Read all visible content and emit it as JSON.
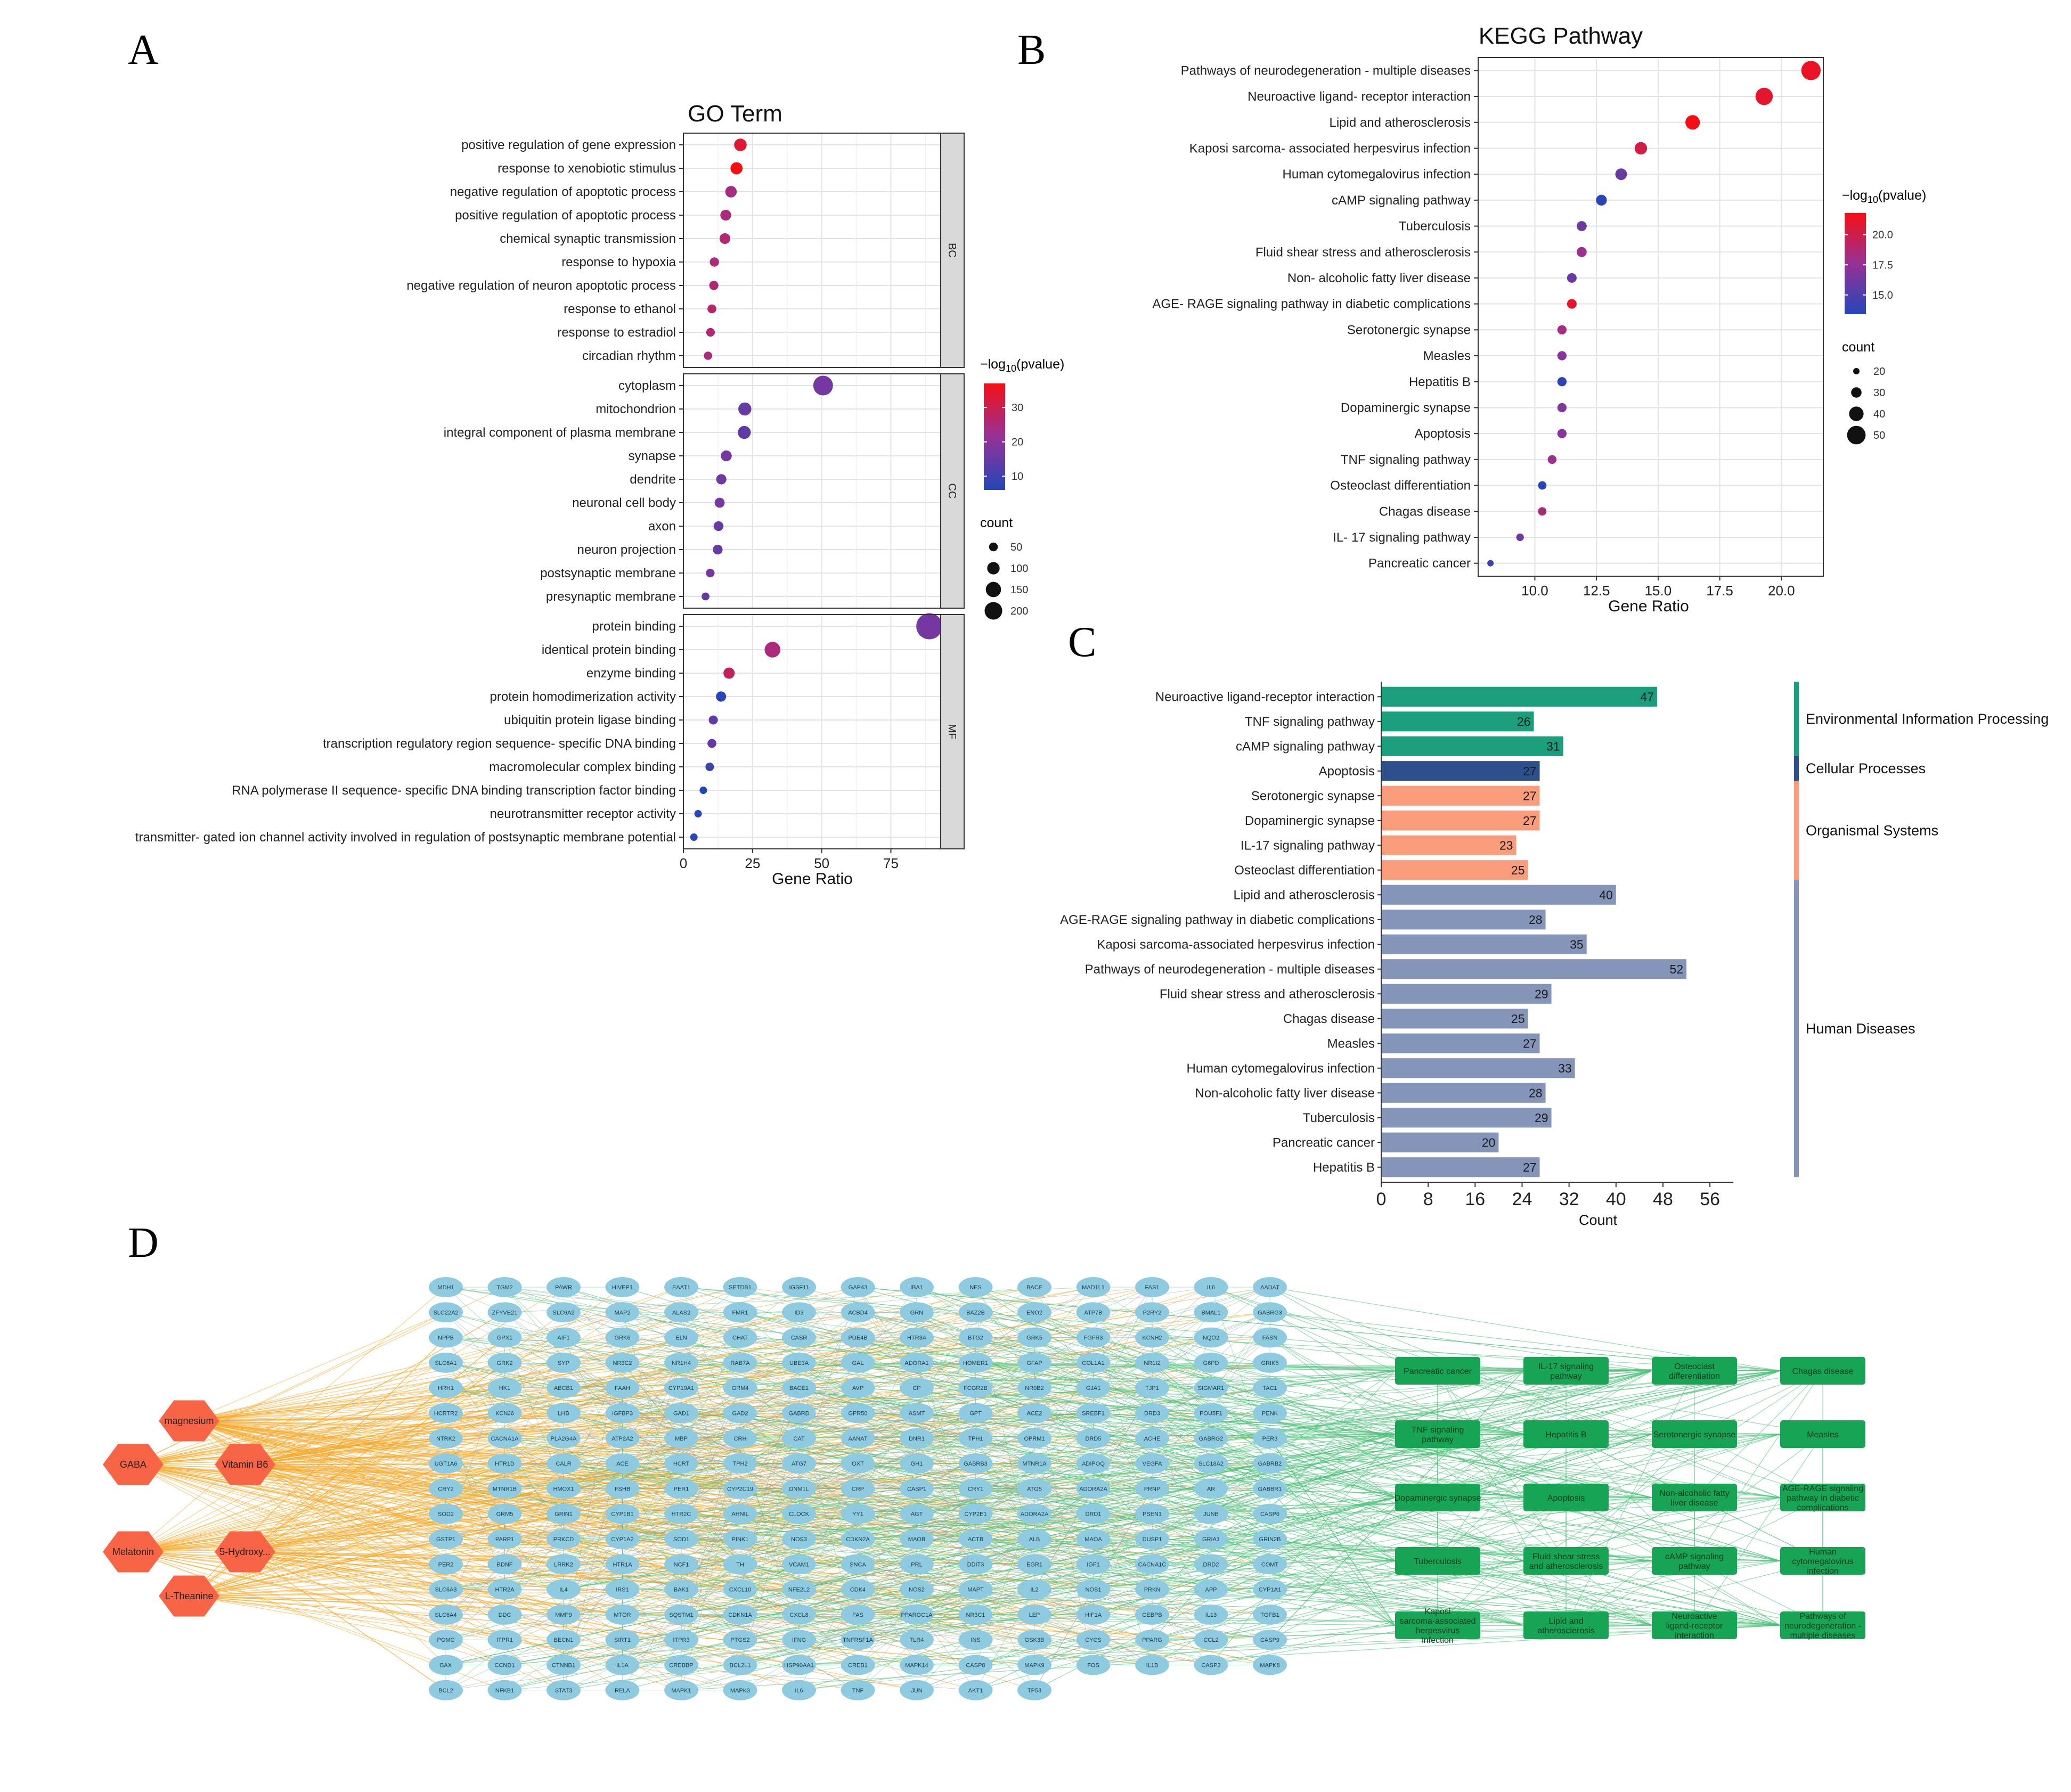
{
  "panel_labels": [
    "A",
    "B",
    "C",
    "D"
  ],
  "chart_data": [
    {
      "id": "go",
      "type": "scatter",
      "title": "GO Term",
      "xlabel": "Gene Ratio",
      "xlim": [
        0,
        93
      ],
      "xticks": [
        0,
        25,
        50,
        75
      ],
      "color_legend": {
        "title": "−log10(pvalue)",
        "ticks": [
          10,
          20,
          30
        ],
        "range": [
          6,
          37
        ]
      },
      "size_legend": {
        "title": "count",
        "values": [
          50,
          100,
          150,
          200
        ]
      },
      "facets": [
        {
          "label": "BC",
          "terms": [
            {
              "term": "positive regulation of gene expression",
              "x": 20.6,
              "logp": 33
            },
            {
              "term": "response to xenobiotic stimulus",
              "x": 19.2,
              "logp": 37
            },
            {
              "term": "negative regulation of apoptotic process",
              "x": 17.2,
              "logp": 24
            },
            {
              "term": "positive regulation of apoptotic process",
              "x": 15.3,
              "logp": 25
            },
            {
              "term": "chemical synaptic transmission",
              "x": 15.0,
              "logp": 26
            },
            {
              "term": "response to hypoxia",
              "x": 11.2,
              "logp": 25
            },
            {
              "term": "negative regulation of neuron apoptotic process",
              "x": 11.0,
              "logp": 26
            },
            {
              "term": "response to ethanol",
              "x": 10.3,
              "logp": 27
            },
            {
              "term": "response to estradiol",
              "x": 9.8,
              "logp": 26
            },
            {
              "term": "circadian rhythm",
              "x": 8.9,
              "logp": 25
            }
          ]
        },
        {
          "label": "CC",
          "terms": [
            {
              "term": "cytoplasm",
              "x": 50.5,
              "logp": 17
            },
            {
              "term": "mitochondrion",
              "x": 22.2,
              "logp": 15
            },
            {
              "term": "integral component of plasma membrane",
              "x": 22.0,
              "logp": 14
            },
            {
              "term": "synapse",
              "x": 15.5,
              "logp": 17
            },
            {
              "term": "dendrite",
              "x": 13.7,
              "logp": 16
            },
            {
              "term": "neuronal cell body",
              "x": 13.1,
              "logp": 17
            },
            {
              "term": "axon",
              "x": 12.7,
              "logp": 15
            },
            {
              "term": "neuron projection",
              "x": 12.4,
              "logp": 15
            },
            {
              "term": "postsynaptic membrane",
              "x": 9.7,
              "logp": 17
            },
            {
              "term": "presynaptic membrane",
              "x": 8.0,
              "logp": 15
            }
          ]
        },
        {
          "label": "MF",
          "terms": [
            {
              "term": "protein binding",
              "x": 88.9,
              "logp": 17
            },
            {
              "term": "identical protein binding",
              "x": 32.2,
              "logp": 25
            },
            {
              "term": "enzyme binding",
              "x": 16.5,
              "logp": 28
            },
            {
              "term": "protein homodimerization activity",
              "x": 13.6,
              "logp": 7
            },
            {
              "term": "ubiquitin protein ligase binding",
              "x": 10.8,
              "logp": 14
            },
            {
              "term": "transcription regulatory region sequence- specific DNA binding",
              "x": 10.3,
              "logp": 15
            },
            {
              "term": "macromolecular complex binding",
              "x": 9.5,
              "logp": 9
            },
            {
              "term": "RNA polymerase II sequence- specific DNA binding transcription factor binding",
              "x": 7.2,
              "logp": 6
            },
            {
              "term": "neurotransmitter receptor activity",
              "x": 5.3,
              "logp": 7
            },
            {
              "term": "transmitter- gated ion channel activity involved in regulation of postsynaptic membrane potential",
              "x": 3.8,
              "logp": 7
            }
          ]
        }
      ]
    },
    {
      "id": "kegg",
      "type": "scatter",
      "title": "KEGG Pathway",
      "xlabel": "Gene Ratio",
      "xlim": [
        7.7,
        21.7
      ],
      "xticks": [
        10.0,
        12.5,
        15.0,
        17.5,
        20.0
      ],
      "xtick_labels": [
        "10.0",
        "12.5",
        "15.0",
        "17.5",
        "20.0"
      ],
      "color_legend": {
        "title": "−log10(pvalue)",
        "ticks": [
          15.0,
          17.5,
          20.0
        ],
        "tick_labels": [
          "15.0",
          "17.5",
          "20.0"
        ],
        "range": [
          13.4,
          21.8
        ]
      },
      "size_legend": {
        "title": "count",
        "values": [
          20,
          30,
          40,
          50
        ]
      },
      "terms": [
        {
          "term": "Pathways of neurodegeneration - multiple diseases",
          "x": 21.2,
          "logp": 21.3,
          "count": 52
        },
        {
          "term": "Neuroactive ligand- receptor interaction",
          "x": 19.3,
          "logp": 21.0,
          "count": 47
        },
        {
          "term": "Lipid and atherosclerosis",
          "x": 16.4,
          "logp": 21.8,
          "count": 40
        },
        {
          "term": "Kaposi sarcoma- associated herpesvirus infection",
          "x": 14.3,
          "logp": 20.3,
          "count": 35
        },
        {
          "term": "Human cytomegalovirus infection",
          "x": 13.5,
          "logp": 16.0,
          "count": 33
        },
        {
          "term": "cAMP signaling pathway",
          "x": 12.7,
          "logp": 13.6,
          "count": 31
        },
        {
          "term": "Tuberculosis",
          "x": 11.9,
          "logp": 16.2,
          "count": 29
        },
        {
          "term": "Fluid shear stress and atherosclerosis",
          "x": 11.9,
          "logp": 17.8,
          "count": 29
        },
        {
          "term": "Non- alcoholic fatty liver disease",
          "x": 11.5,
          "logp": 16.0,
          "count": 28
        },
        {
          "term": "AGE- RAGE signaling pathway in diabetic complications",
          "x": 11.5,
          "logp": 21.0,
          "count": 28
        },
        {
          "term": "Serotonergic synapse",
          "x": 11.1,
          "logp": 18.3,
          "count": 27
        },
        {
          "term": "Measles",
          "x": 11.1,
          "logp": 17.0,
          "count": 27
        },
        {
          "term": "Hepatitis B",
          "x": 11.1,
          "logp": 13.8,
          "count": 27
        },
        {
          "term": "Dopaminergic synapse",
          "x": 11.1,
          "logp": 16.8,
          "count": 27
        },
        {
          "term": "Apoptosis",
          "x": 11.1,
          "logp": 17.0,
          "count": 27
        },
        {
          "term": "TNF signaling pathway",
          "x": 10.7,
          "logp": 17.8,
          "count": 26
        },
        {
          "term": "Osteoclast differentiation",
          "x": 10.3,
          "logp": 13.7,
          "count": 25
        },
        {
          "term": "Chagas disease",
          "x": 10.3,
          "logp": 18.5,
          "count": 25
        },
        {
          "term": "IL- 17 signaling pathway",
          "x": 9.4,
          "logp": 16.2,
          "count": 23
        },
        {
          "term": "Pancreatic cancer",
          "x": 8.2,
          "logp": 14.5,
          "count": 20
        }
      ]
    },
    {
      "id": "kegg-bar",
      "type": "bar",
      "xlabel": "Count",
      "xlim": [
        0,
        60
      ],
      "xticks": [
        0,
        8,
        16,
        24,
        32,
        40,
        48,
        56
      ],
      "groups": [
        {
          "name": "Environmental Information Processing",
          "color": "#1a9e7c",
          "from": 0,
          "to": 2
        },
        {
          "name": "Cellular Processes",
          "color": "#2d4f8b",
          "from": 3,
          "to": 3
        },
        {
          "name": "Organismal Systems",
          "color": "#f89c7c",
          "from": 4,
          "to": 7
        },
        {
          "name": "Human Diseases",
          "color": "#8595ba",
          "from": 8,
          "to": 19
        }
      ],
      "categories": [
        "Neuroactive ligand-receptor interaction",
        "TNF signaling pathway",
        "cAMP signaling pathway",
        "Apoptosis",
        "Serotonergic synapse",
        "Dopaminergic synapse",
        "IL-17 signaling pathway",
        "Osteoclast differentiation",
        "Lipid and atherosclerosis",
        "AGE-RAGE signaling pathway in diabetic complications",
        "Kaposi sarcoma-associated herpesvirus infection",
        "Pathways of neurodegeneration - multiple diseases",
        "Fluid shear stress and atherosclerosis",
        "Chagas disease",
        "Measles",
        "Human cytomegalovirus infection",
        "Non-alcoholic fatty liver disease",
        "Tuberculosis",
        "Pancreatic cancer",
        "Hepatitis B"
      ],
      "values": [
        47,
        26,
        31,
        27,
        27,
        27,
        23,
        25,
        40,
        28,
        35,
        52,
        29,
        25,
        27,
        33,
        28,
        29,
        20,
        27
      ]
    },
    {
      "id": "network",
      "type": "network",
      "compounds": [
        {
          "label": "magnesium",
          "col": 1,
          "row": 0
        },
        {
          "label": "GABA",
          "col": 0,
          "row": 1
        },
        {
          "label": "Vitamin B6",
          "col": 2,
          "row": 1
        },
        {
          "label": "Melatonin",
          "col": 0,
          "row": 3
        },
        {
          "label": "5-Hydroxy...",
          "col": 2,
          "row": 3
        },
        {
          "label": "L-Theanine",
          "col": 1,
          "row": 4
        }
      ],
      "targets": [
        [
          "MDH1",
          "TGM2",
          "PAWR",
          "HIVEP1",
          "EAAT1",
          "SETDB1",
          "IGSF11",
          "GAP43",
          "IBA1",
          "NES",
          "BACE",
          "MAD1L1",
          "FAS1",
          "IL6",
          "AADAT"
        ],
        [
          "SLC22A2",
          "ZFYVE21",
          "SLC6A2",
          "MAP2",
          "ALAS2",
          "FMR1",
          "ID3",
          "ACBD4",
          "GRN",
          "BAZ2B",
          "ENO2",
          "ATP7B",
          "P2RY2",
          "BMAL1",
          "GABRG3"
        ],
        [
          "NPPB",
          "GPX1",
          "AIF1",
          "GRK6",
          "ELN",
          "CHAT",
          "CASR",
          "PDE4B",
          "HTR3A",
          "BTG2",
          "GRK5",
          "FGFR3",
          "KCNH2",
          "NQO2",
          "FASN"
        ],
        [
          "SLC6A1",
          "GRK2",
          "SYP",
          "NR3C2",
          "NR1H4",
          "RAB7A",
          "UBE3A",
          "GAL",
          "ADORA1",
          "HOMER1",
          "GFAP",
          "COL1A1",
          "NR1I2",
          "G6PD",
          "GRIK5"
        ],
        [
          "HRH1",
          "HK1",
          "ABCB1",
          "FAAH",
          "CYP19A1",
          "GRM4",
          "BACE1",
          "AVP",
          "CP",
          "FCGR2B",
          "NR0B2",
          "GJA1",
          "TJP1",
          "SIGMAR1",
          "TAC1"
        ],
        [
          "HCRTR2",
          "KCNJ6",
          "LHB",
          "IGFBP3",
          "GAD1",
          "GAD2",
          "GABRD",
          "GPR50",
          "ASMT",
          "GPT",
          "ACE2",
          "SREBF1",
          "DRD3",
          "POU5F1",
          "PENK"
        ],
        [
          "NTRK2",
          "CACNA1A",
          "PLA2G4A",
          "ATP2A2",
          "MBP",
          "CRH",
          "CAT",
          "AANAT",
          "DNR1",
          "TPH1",
          "OPRM1",
          "DRD5",
          "ACHE",
          "GABRG2",
          "PER3"
        ],
        [
          "UGT1A6",
          "HTR1D",
          "CALR",
          "ACE",
          "HCRT",
          "TPH2",
          "ATG7",
          "OXT",
          "GH1",
          "GABRB3",
          "MTNR1A",
          "ADIPOQ",
          "VEGFA",
          "SLC18A2",
          "GABRB2"
        ],
        [
          "CRY2",
          "MTNR1B",
          "HMOX1",
          "FSHB",
          "PER1",
          "CYP2C19",
          "DNM1L",
          "CRP",
          "CASP1",
          "CRY1",
          "ATG5",
          "ADORA2A",
          "PRNP",
          "AR",
          "GABBR1"
        ],
        [
          "SOD2",
          "GRM5",
          "GRIN1",
          "CYP1B1",
          "HTR2C",
          "AHNIL",
          "CLOCK",
          "YY1",
          "AGT",
          "CYP2E1",
          "ADORA2A",
          "DRD1",
          "PSEN1",
          "JUNB",
          "CASP6"
        ],
        [
          "GSTP1",
          "PARP1",
          "PRKCD",
          "CYP1A2",
          "SOD1",
          "PINK1",
          "NOS3",
          "CDKN2A",
          "MAOB",
          "ACTB",
          "ALB",
          "MAOA",
          "DUSP1",
          "GRIA1",
          "GRIN2B"
        ],
        [
          "PER2",
          "BDNF",
          "LRRK2",
          "HTR1A",
          "NCF1",
          "TH",
          "VCAM1",
          "SNCA",
          "PRL",
          "DDIT3",
          "EGR1",
          "IGF1",
          "CACNA1C",
          "DRD2",
          "COMT"
        ],
        [
          "SLC6A3",
          "HTR2A",
          "IL4",
          "IRS1",
          "BAK1",
          "CXCL10",
          "NFE2L2",
          "CDK4",
          "NOS2",
          "MAPT",
          "IL2",
          "NOS1",
          "PRKN",
          "APP",
          "CYP1A1"
        ],
        [
          "SLC6A4",
          "DDC",
          "MMP9",
          "MTOR",
          "SQSTM1",
          "CDKN1A",
          "CXCL8",
          "FAS",
          "PPARGC1A",
          "NR3C1",
          "LEP",
          "HIF1A",
          "CEBPB",
          "IL13",
          "TGFB1"
        ],
        [
          "POMC",
          "ITPR1",
          "BECN1",
          "SIRT1",
          "ITPR3",
          "PTGS2",
          "IFNG",
          "TNFRSF1A",
          "TLR4",
          "INS",
          "GSK3B",
          "CYCS",
          "PPARG",
          "CCL2",
          "CASP9"
        ],
        [
          "BAX",
          "CCND1",
          "CTNNB1",
          "IL1A",
          "CREBBP",
          "BCL2L1",
          "HSP90AA1",
          "CREB1",
          "MAPK14",
          "CASP8",
          "MAPK9",
          "FOS",
          "IL1B",
          "CASP3",
          "MAPK8"
        ],
        [
          "BCL2",
          "NFKB1",
          "STAT3",
          "RELA",
          "MAPK1",
          "MAPK3",
          "IL6",
          "TNF",
          "JUN",
          "AKT1",
          "TP53"
        ]
      ],
      "pathway_rows": [
        [
          "Pancreatic cancer",
          "IL-17 signaling pathway",
          "Osteoclast differentiation",
          "Chagas disease"
        ],
        [
          "TNF signaling pathway",
          "Hepatitis B",
          "Serotonergic synapse",
          "Measles"
        ],
        [
          "Dopaminergic synapse",
          "Apoptosis",
          "Non-alcoholic fatty liver disease",
          "AGE-RAGE signaling pathway in diabetic complications"
        ],
        [
          "Tuberculosis",
          "Fluid shear stress and atherosclerosis",
          "cAMP signaling pathway",
          "Human cytomegalovirus infection"
        ],
        [
          "Kaposi sarcoma-associated herpesvirus infection",
          "Lipid and atherosclerosis",
          "Neuroactive ligand-receptor interaction",
          "Pathways of neurodegeneration - multiple diseases"
        ]
      ],
      "colors": {
        "compound": "#f76446",
        "target": "#8fcbe0",
        "pathway": "#17a454",
        "edge_compound": "#f5a623",
        "edge_pathway": "#4cc27a",
        "edge_ppi": "#9a9a9a"
      }
    }
  ]
}
